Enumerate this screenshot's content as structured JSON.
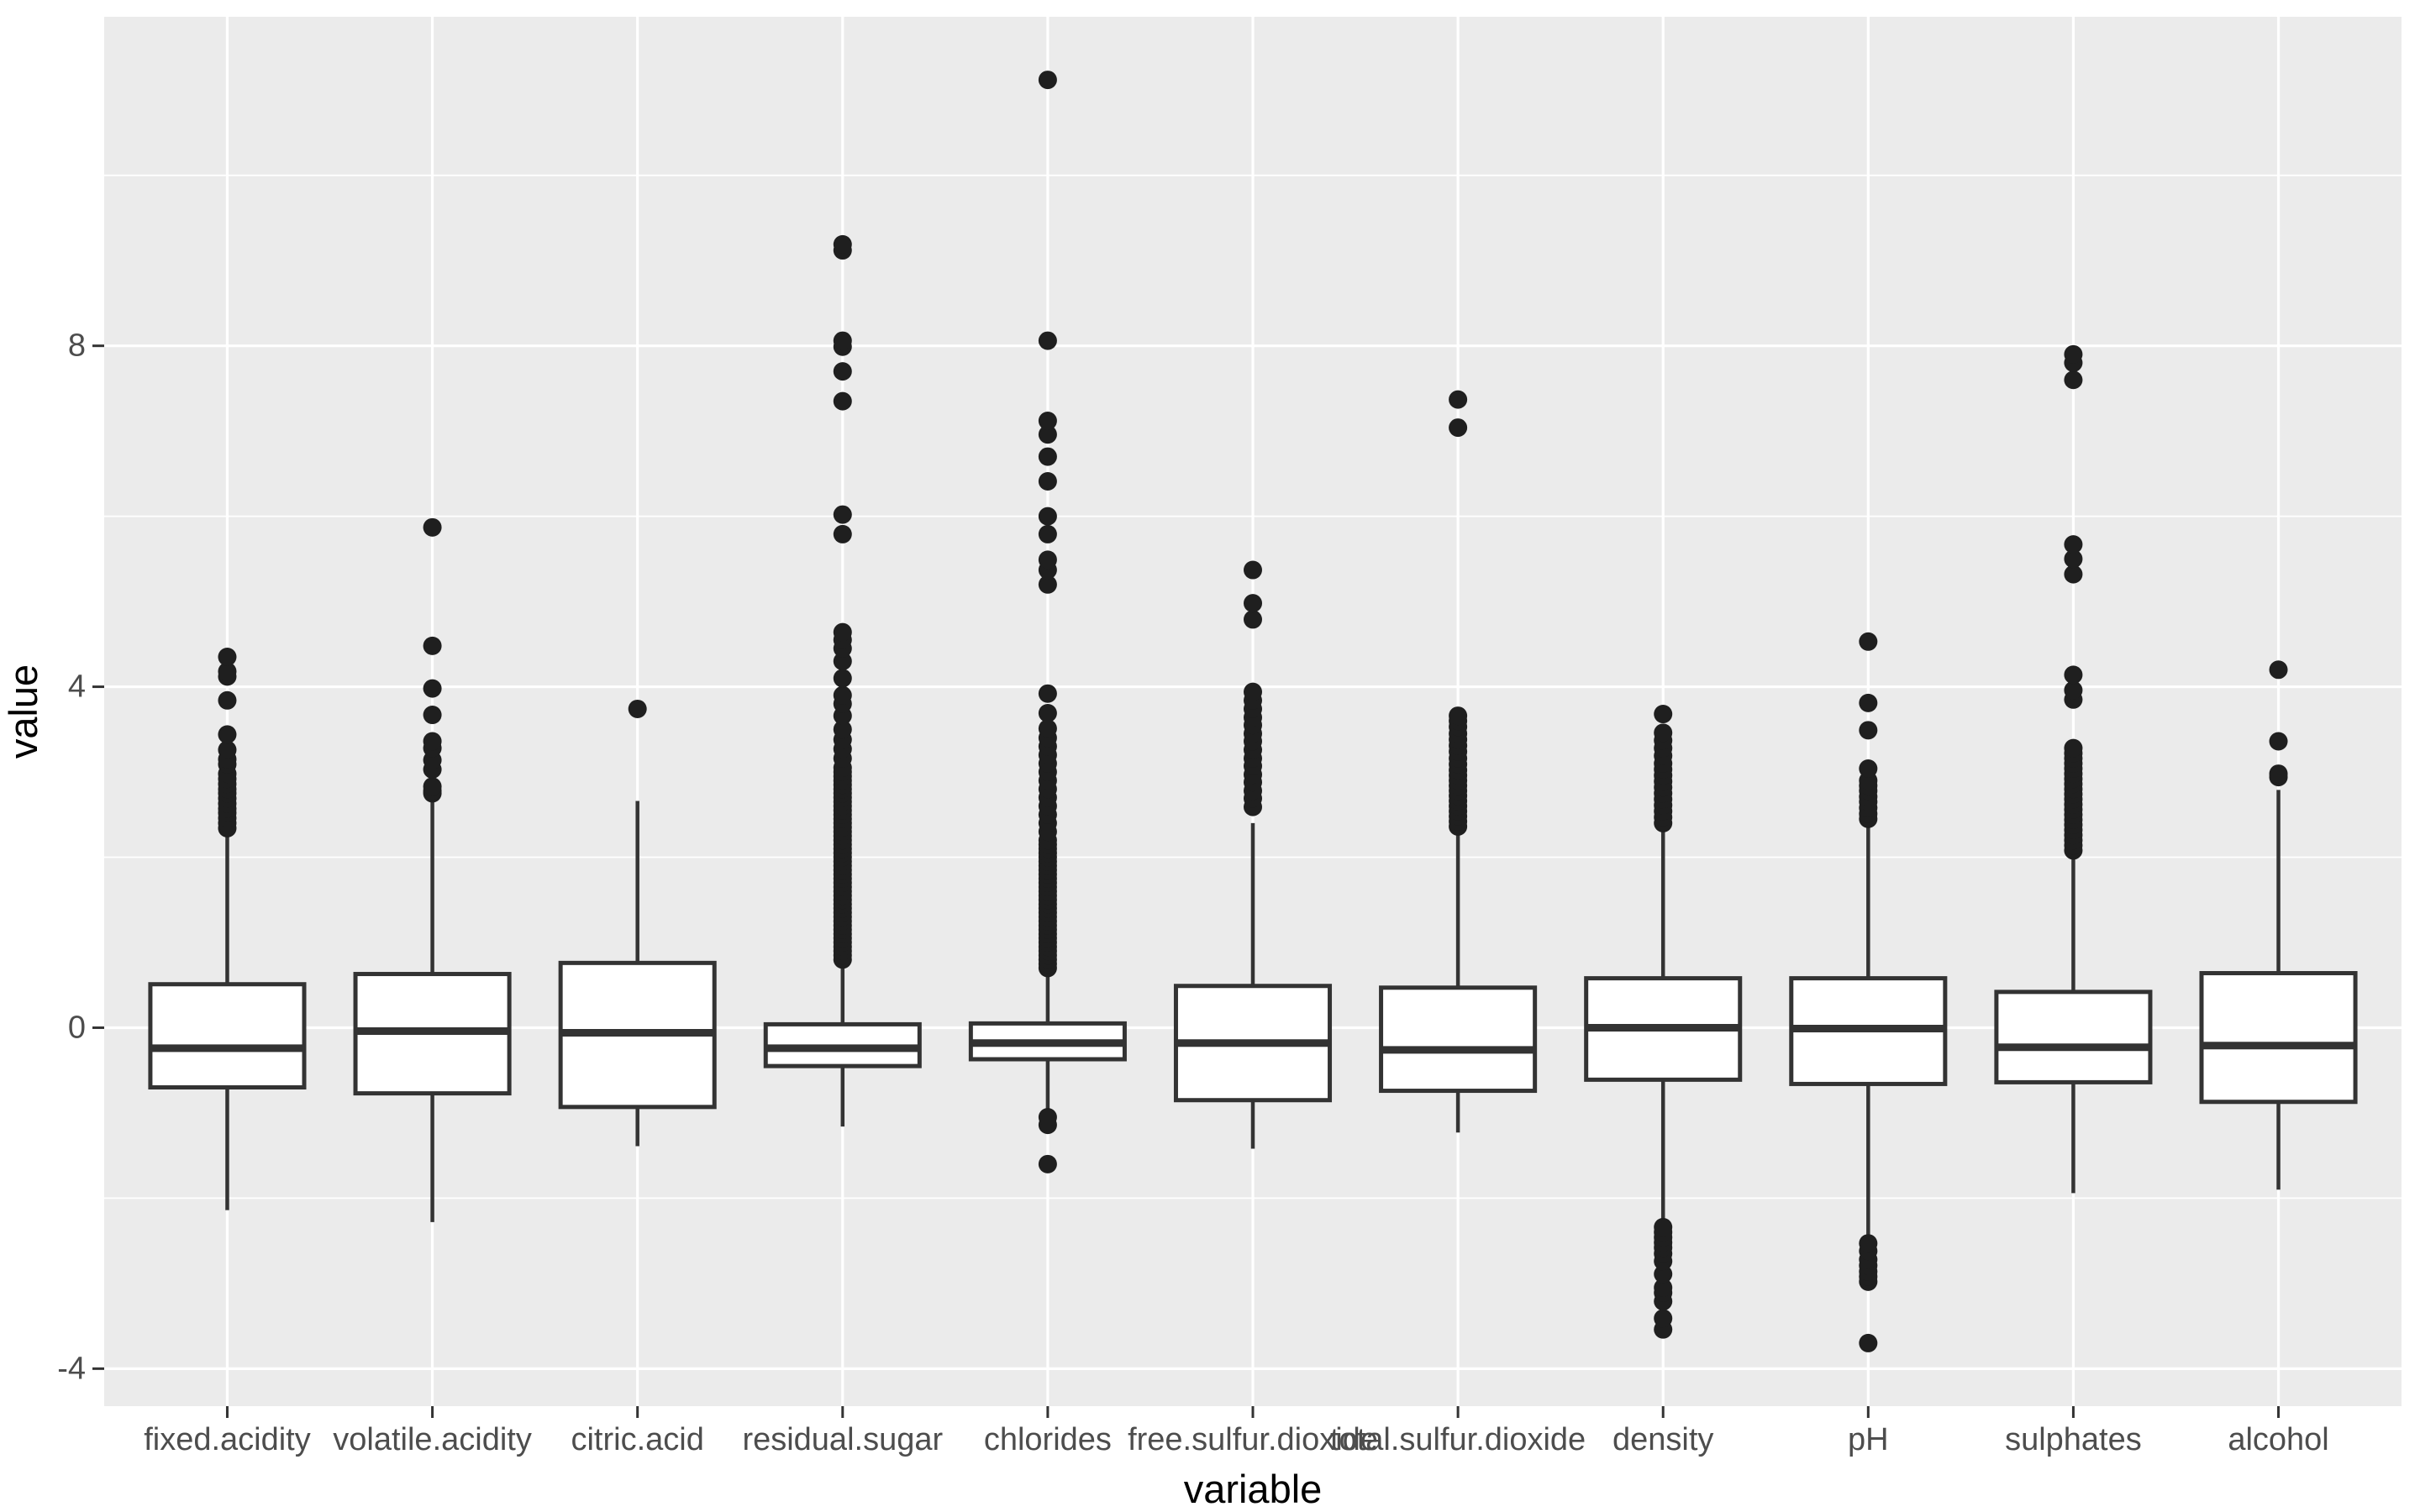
{
  "chart_data": {
    "type": "boxplot",
    "title": "",
    "xlabel": "variable",
    "ylabel": "value",
    "legend": "none",
    "grid": "on",
    "categories": [
      "fixed.acidity",
      "volatile.acidity",
      "citric.acid",
      "residual.sugar",
      "chlorides",
      "free.sulfur.dioxide",
      "total.sulfur.dioxide",
      "density",
      "pH",
      "sulphates",
      "alcohol"
    ],
    "y_axis": {
      "major_ticks": [
        -4,
        0,
        4,
        8
      ],
      "major_tick_labels": [
        "-4",
        "0",
        "4",
        "8"
      ],
      "minor_ticks": [
        -2,
        2,
        6,
        10
      ],
      "limits": [
        -4.44,
        11.86
      ]
    },
    "series": [
      {
        "name": "fixed.acidity",
        "whisker_low": -2.14,
        "q1": -0.7,
        "median": -0.24,
        "q3": 0.51,
        "whisker_high": 2.29,
        "outliers": [
          2.34,
          2.4,
          2.46,
          2.52,
          2.57,
          2.63,
          2.69,
          2.75,
          2.8,
          2.86,
          2.92,
          2.98,
          3.09,
          3.15,
          3.26,
          3.44,
          3.84,
          4.12,
          4.18,
          4.35
        ]
      },
      {
        "name": "volatile.acidity",
        "whisker_low": -2.28,
        "q1": -0.77,
        "median": -0.04,
        "q3": 0.63,
        "whisker_high": 2.69,
        "outliers": [
          2.75,
          2.78,
          2.83,
          3.03,
          3.14,
          3.28,
          3.36,
          3.67,
          3.98,
          4.48,
          5.87
        ]
      },
      {
        "name": "citric.acid",
        "whisker_low": -1.39,
        "q1": -0.93,
        "median": -0.06,
        "q3": 0.76,
        "whisker_high": 2.66,
        "outliers": [
          3.74
        ]
      },
      {
        "name": "residual.sugar",
        "whisker_low": -1.16,
        "q1": -0.45,
        "median": -0.24,
        "q3": 0.04,
        "whisker_high": 0.78,
        "outliers": [
          0.8,
          0.85,
          0.9,
          0.95,
          1.0,
          1.05,
          1.1,
          1.15,
          1.2,
          1.25,
          1.3,
          1.35,
          1.4,
          1.45,
          1.5,
          1.55,
          1.6,
          1.65,
          1.7,
          1.75,
          1.8,
          1.85,
          1.9,
          1.95,
          2.0,
          2.05,
          2.1,
          2.15,
          2.2,
          2.25,
          2.3,
          2.35,
          2.4,
          2.45,
          2.5,
          2.55,
          2.6,
          2.65,
          2.7,
          2.75,
          2.8,
          2.85,
          2.9,
          2.95,
          3.0,
          3.05,
          3.16,
          3.27,
          3.38,
          3.5,
          3.66,
          3.8,
          3.9,
          4.1,
          4.3,
          4.45,
          4.55,
          4.64,
          5.79,
          6.02,
          7.35,
          7.7,
          7.99,
          8.06,
          9.12,
          9.19
        ]
      },
      {
        "name": "chlorides",
        "whisker_low": -0.99,
        "q1": -0.37,
        "median": -0.18,
        "q3": 0.05,
        "whisker_high": 0.69,
        "outliers": [
          -1.6,
          -1.14,
          -1.05,
          0.7,
          0.75,
          0.8,
          0.85,
          0.9,
          0.95,
          1.0,
          1.05,
          1.1,
          1.15,
          1.2,
          1.25,
          1.3,
          1.35,
          1.4,
          1.45,
          1.5,
          1.55,
          1.6,
          1.65,
          1.7,
          1.75,
          1.8,
          1.85,
          1.9,
          1.95,
          2.0,
          2.05,
          2.1,
          2.15,
          2.2,
          2.3,
          2.4,
          2.5,
          2.6,
          2.7,
          2.8,
          2.9,
          3.0,
          3.1,
          3.2,
          3.3,
          3.4,
          3.51,
          3.69,
          3.92,
          5.2,
          5.37,
          5.49,
          5.79,
          6.0,
          6.41,
          6.7,
          6.96,
          7.12,
          8.06,
          11.12
        ]
      },
      {
        "name": "free.sulfur.dioxide",
        "whisker_low": -1.42,
        "q1": -0.85,
        "median": -0.18,
        "q3": 0.49,
        "whisker_high": 2.4,
        "outliers": [
          2.59,
          2.69,
          2.78,
          2.88,
          2.97,
          3.07,
          3.16,
          3.26,
          3.36,
          3.45,
          3.55,
          3.64,
          3.74,
          3.84,
          3.94,
          4.79,
          4.98,
          5.37
        ]
      },
      {
        "name": "total.sulfur.dioxide",
        "whisker_low": -1.23,
        "q1": -0.74,
        "median": -0.26,
        "q3": 0.47,
        "whisker_high": 2.3,
        "outliers": [
          2.36,
          2.42,
          2.48,
          2.54,
          2.6,
          2.66,
          2.72,
          2.78,
          2.84,
          2.9,
          2.96,
          3.02,
          3.09,
          3.16,
          3.24,
          3.31,
          3.38,
          3.45,
          3.53,
          3.6,
          3.66,
          7.04,
          7.37
        ]
      },
      {
        "name": "density",
        "whisker_low": -2.36,
        "q1": -0.61,
        "median": 0.0,
        "q3": 0.58,
        "whisker_high": 2.33,
        "outliers": [
          -3.54,
          -3.41,
          -3.21,
          -3.11,
          -3.05,
          -2.89,
          -2.74,
          -2.65,
          -2.58,
          -2.52,
          -2.46,
          -2.4,
          -2.34,
          2.4,
          2.47,
          2.54,
          2.61,
          2.68,
          2.75,
          2.82,
          2.89,
          2.96,
          3.03,
          3.1,
          3.19,
          3.28,
          3.37,
          3.46,
          3.68
        ]
      },
      {
        "name": "pH",
        "whisker_low": -2.47,
        "q1": -0.66,
        "median": -0.01,
        "q3": 0.58,
        "whisker_high": 2.39,
        "outliers": [
          -3.7,
          -2.98,
          -2.92,
          -2.86,
          -2.79,
          -2.72,
          -2.62,
          -2.53,
          2.45,
          2.51,
          2.58,
          2.65,
          2.71,
          2.78,
          2.84,
          2.9,
          3.04,
          3.49,
          3.81,
          4.53
        ]
      },
      {
        "name": "sulphates",
        "whisker_low": -1.94,
        "q1": -0.64,
        "median": -0.23,
        "q3": 0.42,
        "whisker_high": 1.98,
        "outliers": [
          2.08,
          2.14,
          2.2,
          2.26,
          2.32,
          2.38,
          2.44,
          2.5,
          2.56,
          2.62,
          2.68,
          2.74,
          2.8,
          2.86,
          2.92,
          2.98,
          3.04,
          3.1,
          3.16,
          3.22,
          3.28,
          3.85,
          3.96,
          4.14,
          5.32,
          5.5,
          5.67,
          7.6,
          7.8,
          7.9
        ]
      },
      {
        "name": "alcohol",
        "whisker_low": -1.9,
        "q1": -0.87,
        "median": -0.21,
        "q3": 0.64,
        "whisker_high": 2.79,
        "outliers": [
          2.94,
          2.98,
          3.36,
          4.2
        ]
      }
    ],
    "colors": {
      "panel_bg": "#EBEBEB",
      "grid": "#FFFFFF",
      "box_stroke": "#333333",
      "box_fill": "#FFFFFF",
      "point": "#1F1F1F",
      "tick_mark": "#333333",
      "tick_label": "#4D4D4D",
      "axis_title": "#000000"
    }
  }
}
